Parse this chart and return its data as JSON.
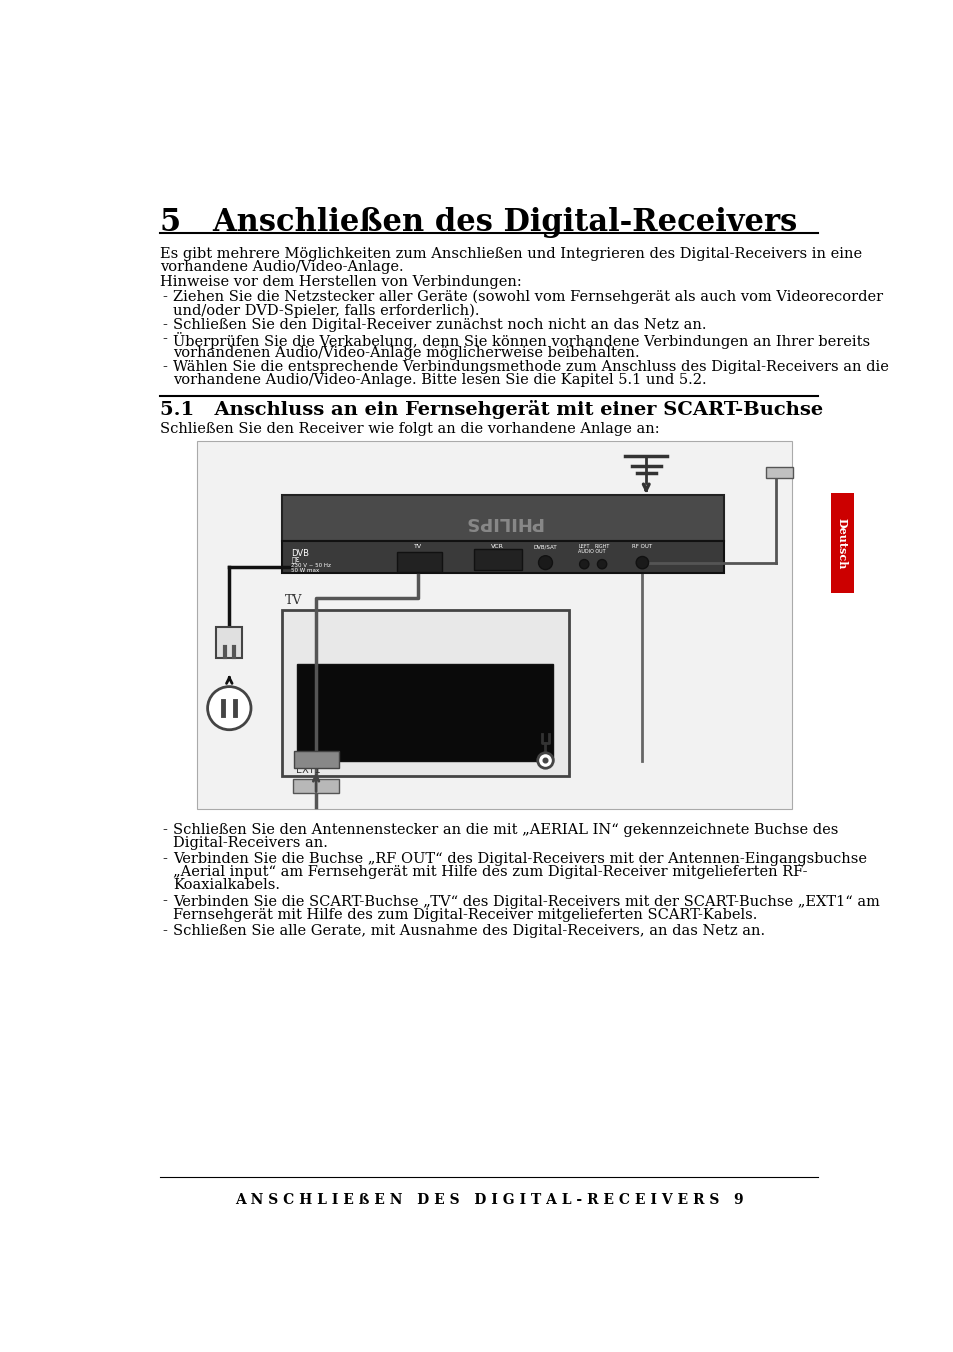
{
  "page_bg": "#ffffff",
  "title": "5   Anschließen des Digital-Receivers",
  "section_title": "5.1   Anschluss an ein Fernsehgerät mit einer SCART-Buchse",
  "section_subtitle": "Schließen Sie den Receiver wie folgt an die vorhandene Anlage an:",
  "intro_line1": "Es gibt mehrere Möglichkeiten zum Anschließen und Integrieren des Digital-Receivers in eine",
  "intro_line2": "vorhandene Audio/Video-Anlage.",
  "hinweise": "Hinweise vor dem Herstellen von Verbindungen:",
  "bullet1_line1": "Ziehen Sie die Netzstecker aller Geräte (sowohl vom Fernsehgerät als auch vom Videorecorder",
  "bullet1_line2": "und/oder DVD-Spieler, falls erforderlich).",
  "bullet2": "Schließen Sie den Digital-Receiver zunächst noch nicht an das Netz an.",
  "bullet3_line1": "Überprüfen Sie die Verkabelung, denn Sie können vorhandene Verbindungen an Ihrer bereits",
  "bullet3_line2": "vorhandenen Audio/Video-Anlage möglicherweise beibehalten.",
  "bullet4_line1": "Wählen Sie die entsprechende Verbindungsmethode zum Anschluss des Digital-Receivers an die",
  "bullet4_line2": "vorhandene Audio/Video-Anlage. Bitte lesen Sie die Kapitel 5.1 und 5.2.",
  "bb1_line1": "Schließen Sie den Antennenstecker an die mit „AERIAL IN“ gekennzeichnete Buchse des",
  "bb1_line2": "Digital-Receivers an.",
  "bb2_line1": "Verbinden Sie die Buchse „RF OUT“ des Digital-Receivers mit der Antennen-Eingangsbuchse",
  "bb2_line2": "„Aerial input“ am Fernsehgerät mit Hilfe des zum Digital-Receiver mitgelieferten RF-",
  "bb2_line3": "Koaxialkabels.",
  "bb3_line1": "Verbinden Sie die SCART-Buchse „TV“ des Digital-Receivers mit der SCART-Buchse „EXT1“ am",
  "bb3_line2": "Fernsehgerät mit Hilfe des zum Digital-Receiver mitgelieferten SCART-Kabels.",
  "bb4": "Schließen Sie alle Gerate, mit Ausnahme des Digital-Receivers, an das Netz an.",
  "footer": "A N S C H L I E ß E N   D E S   D I G I T A L - R E C E I V E R S   9",
  "sidebar_label": "Deutsch",
  "sidebar_bg": "#cc0000",
  "sidebar_fg": "#ffffff",
  "text_color": "#000000",
  "rule_color": "#000000",
  "title_fontsize": 22,
  "section_fontsize": 14,
  "body_fontsize": 10.5,
  "footer_fontsize": 10
}
